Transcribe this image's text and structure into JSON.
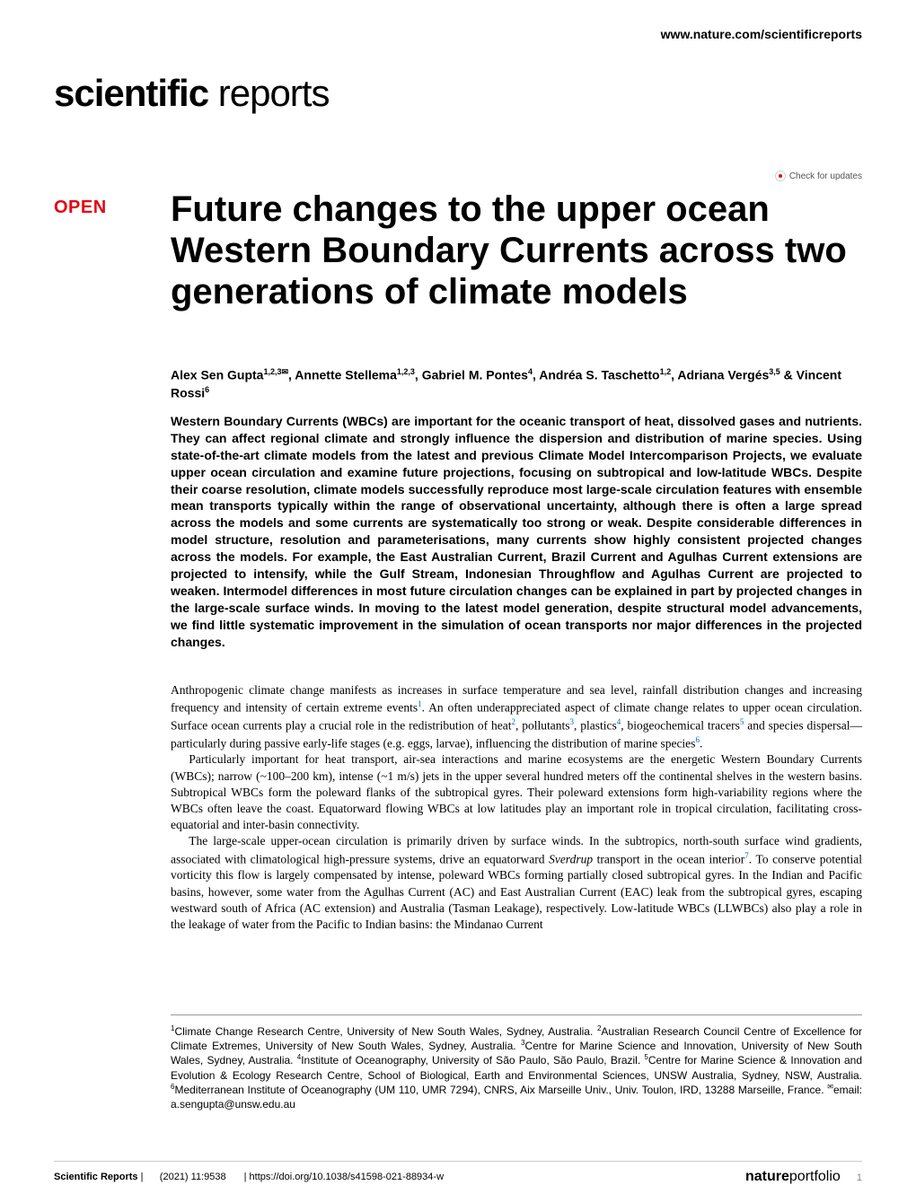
{
  "header": {
    "url": "www.nature.com/scientificreports"
  },
  "logo": {
    "bold": "scientific",
    "light": " reports"
  },
  "check_updates": "Check for updates",
  "open_badge": "OPEN",
  "title": "Future changes to the upper ocean Western Boundary Currents across two generations of climate models",
  "authors_html": "Alex Sen Gupta<sup>1,2,3✉</sup>, Annette Stellema<sup>1,2,3</sup>, Gabriel  M. Pontes<sup>4</sup>, Andréa S. Taschetto<sup>1,2</sup>, Adriana Vergés<sup>3,5</sup> & Vincent Rossi<sup>6</sup>",
  "abstract": "Western Boundary Currents (WBCs) are important for the oceanic transport of heat, dissolved gases and nutrients. They can affect regional climate and strongly influence the dispersion and distribution of marine species. Using state-of-the-art climate models from the latest and previous Climate Model Intercomparison Projects, we evaluate upper ocean circulation and examine future projections, focusing on subtropical and low-latitude WBCs. Despite their coarse resolution, climate models successfully reproduce most large-scale circulation features with ensemble mean transports typically within the range of observational uncertainty, although there is often a large spread across the models and some currents are systematically too strong or weak. Despite considerable differences in model structure, resolution and parameterisations, many currents show highly consistent projected changes across the models. For example, the East Australian Current, Brazil Current and Agulhas Current extensions are projected to intensify, while the Gulf Stream, Indonesian Throughflow and Agulhas Current are projected to weaken. Intermodel differences in most future circulation changes can be explained in part by projected changes in the large-scale surface winds. In moving to the latest model generation, despite structural model advancements, we find little systematic improvement in the simulation of ocean transports nor major differences in the projected changes.",
  "body": {
    "p1": "Anthropogenic climate change manifests as increases in surface temperature and sea level, rainfall distribution changes and increasing frequency and intensity of certain extreme events",
    "p1_ref1": "1",
    "p1_cont": ". An often underappreciated aspect of climate change relates to upper ocean circulation. Surface ocean currents play a crucial role in the redistribution of heat",
    "p1_ref2": "2",
    "p1_cont2": ", pollutants",
    "p1_ref3": "3",
    "p1_cont3": ", plastics",
    "p1_ref4": "4",
    "p1_cont4": ", biogeochemical tracers",
    "p1_ref5": "5",
    "p1_cont5": " and species dispersal—particularly during passive early-life stages (e.g. eggs, larvae), influencing the distribution of marine species",
    "p1_ref6": "6",
    "p1_end": ".",
    "p2": "Particularly important for heat transport, air-sea interactions and marine ecosystems are the energetic Western Boundary Currents (WBCs); narrow (~100–200 km), intense (~1 m/s) jets in the upper several hundred meters off the continental shelves in the western basins. Subtropical WBCs form the poleward flanks of the subtropical gyres. Their poleward extensions form high-variability regions where the WBCs often leave the coast. Equatorward flowing WBCs at low latitudes play an important role in tropical circulation, facilitating cross-equatorial and inter-basin connectivity.",
    "p3_a": "The large-scale upper-ocean circulation is primarily driven by surface winds. In the subtropics, north-south surface wind gradients, associated with climatological high-pressure systems, drive an equatorward ",
    "p3_em": "Sverdrup",
    "p3_b": " transport in the ocean interior",
    "p3_ref7": "7",
    "p3_c": ". To conserve potential vorticity this flow is largely compensated by intense, poleward WBCs forming partially closed subtropical gyres. In the Indian and Pacific basins, however, some water from the Agulhas Current (AC) and East Australian Current (EAC) leak from the subtropical gyres, escaping westward south of Africa (AC extension) and Australia (Tasman Leakage), respectively. Low-latitude WBCs (LLWBCs) also play a role in the leakage of water from the Pacific to Indian basins: the Mindanao Current"
  },
  "affiliations_html": "<sup>1</sup>Climate Change Research Centre, University of New South Wales, Sydney, Australia. <sup>2</sup>Australian Research Council Centre of Excellence for Climate Extremes, University of New South Wales, Sydney, Australia. <sup>3</sup>Centre for Marine Science and Innovation, University of New South Wales, Sydney, Australia. <sup>4</sup>Institute of Oceanography, University of São Paulo, São Paulo, Brazil. <sup>5</sup>Centre for Marine Science & Innovation and Evolution & Ecology Research Centre, School of Biological, Earth and Environmental Sciences, UNSW Australia, Sydney, NSW, Australia. <sup>6</sup>Mediterranean Institute of Oceanography (UM 110, UMR 7294), CNRS, Aix Marseille Univ., Univ. Toulon, IRD, 13288 Marseille, France. <sup>✉</sup>email: a.sengupta@unsw.edu.au",
  "footer": {
    "journal": "Scientific Reports",
    "citation": "(2021) 11:9538",
    "doi": "https://doi.org/10.1038/s41598-021-88934-w",
    "publisher_bold": "nature",
    "publisher_light": "portfolio",
    "page": "1"
  }
}
